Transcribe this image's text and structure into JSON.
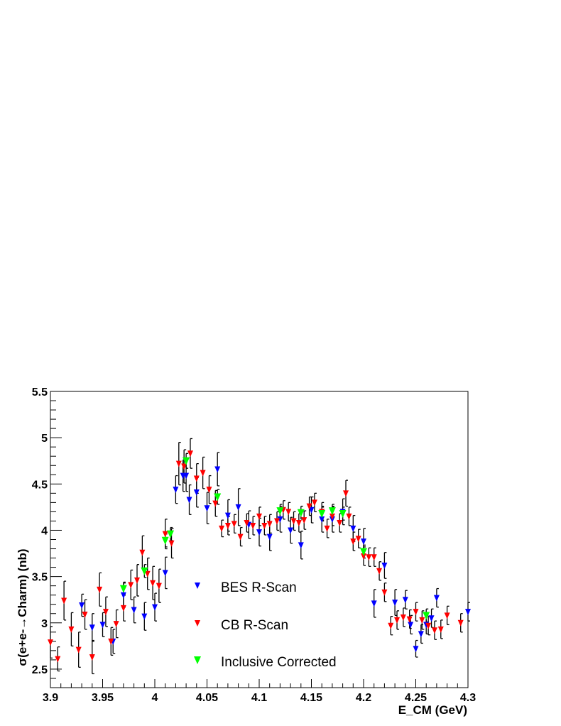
{
  "chart_data": {
    "type": "scatter",
    "title": "",
    "xlabel": "E_CM (GeV)",
    "ylabel": "σ(e+e-→Charm) (nb)",
    "xlim": [
      3.9,
      4.3
    ],
    "ylim": [
      2.3,
      5.5
    ],
    "x_ticks": [
      "3.9",
      "3.95",
      "4",
      "4.05",
      "4.1",
      "4.15",
      "4.2",
      "4.25",
      "4.3"
    ],
    "y_ticks": [
      "2.5",
      "3",
      "3.5",
      "4",
      "4.5",
      "5",
      "5.5"
    ],
    "grid": false,
    "legend_position": "center-left",
    "marker": "triangle-down",
    "error_bars": true,
    "series": [
      {
        "name": "BES R-Scan",
        "color": "#0000ff",
        "points": [
          [
            3.93,
            3.19,
            0.12
          ],
          [
            3.94,
            2.95,
            0.15
          ],
          [
            3.95,
            2.98,
            0.13
          ],
          [
            3.96,
            2.8,
            0.13
          ],
          [
            3.97,
            3.3,
            0.13
          ],
          [
            3.98,
            3.14,
            0.14
          ],
          [
            3.99,
            3.07,
            0.15
          ],
          [
            4.0,
            3.17,
            0.15
          ],
          [
            4.01,
            3.54,
            0.17
          ],
          [
            4.02,
            4.44,
            0.15
          ],
          [
            4.027,
            4.59,
            0.17
          ],
          [
            4.03,
            4.59,
            0.17
          ],
          [
            4.033,
            4.33,
            0.16
          ],
          [
            4.04,
            4.41,
            0.16
          ],
          [
            4.05,
            4.24,
            0.17
          ],
          [
            4.06,
            4.66,
            0.18
          ],
          [
            4.07,
            4.16,
            0.17
          ],
          [
            4.08,
            4.25,
            0.2
          ],
          [
            4.09,
            4.06,
            0.15
          ],
          [
            4.1,
            3.98,
            0.15
          ],
          [
            4.11,
            3.93,
            0.15
          ],
          [
            4.12,
            4.12,
            0.14
          ],
          [
            4.13,
            4.0,
            0.14
          ],
          [
            4.14,
            3.84,
            0.15
          ],
          [
            4.15,
            4.22,
            0.14
          ],
          [
            4.16,
            4.12,
            0.14
          ],
          [
            4.17,
            4.12,
            0.14
          ],
          [
            4.18,
            4.2,
            0.14
          ],
          [
            4.19,
            4.02,
            0.14
          ],
          [
            4.2,
            3.88,
            0.14
          ],
          [
            4.21,
            3.21,
            0.15
          ],
          [
            4.22,
            3.62,
            0.14
          ],
          [
            4.23,
            3.22,
            0.14
          ],
          [
            4.24,
            3.25,
            0.1
          ],
          [
            4.245,
            2.98,
            0.1
          ],
          [
            4.25,
            2.72,
            0.09
          ],
          [
            4.255,
            2.88,
            0.1
          ],
          [
            4.26,
            2.98,
            0.1
          ],
          [
            4.265,
            3.05,
            0.1
          ],
          [
            4.27,
            3.27,
            0.1
          ],
          [
            4.3,
            3.12,
            0.1
          ]
        ]
      },
      {
        "name": "CB R-Scan",
        "color": "#ff0000",
        "points": [
          [
            3.9,
            2.79,
            0.17
          ],
          [
            3.907,
            2.61,
            0.13
          ],
          [
            3.913,
            3.24,
            0.21
          ],
          [
            3.92,
            2.93,
            0.18
          ],
          [
            3.927,
            2.71,
            0.19
          ],
          [
            3.933,
            3.09,
            0.16
          ],
          [
            3.94,
            2.63,
            0.18
          ],
          [
            3.947,
            3.36,
            0.18
          ],
          [
            3.953,
            3.12,
            0.16
          ],
          [
            3.958,
            2.8,
            0.15
          ],
          [
            3.963,
            2.99,
            0.15
          ],
          [
            3.97,
            3.16,
            0.14
          ],
          [
            3.977,
            3.41,
            0.16
          ],
          [
            3.983,
            3.46,
            0.17
          ],
          [
            3.988,
            3.76,
            0.18
          ],
          [
            3.993,
            3.53,
            0.17
          ],
          [
            3.998,
            3.43,
            0.18
          ],
          [
            4.004,
            3.4,
            0.18
          ],
          [
            4.01,
            3.96,
            0.16
          ],
          [
            4.016,
            3.86,
            0.16
          ],
          [
            4.023,
            4.72,
            0.23
          ],
          [
            4.028,
            4.69,
            0.18
          ],
          [
            4.034,
            4.83,
            0.16
          ],
          [
            4.04,
            4.56,
            0.16
          ],
          [
            4.046,
            4.62,
            0.17
          ],
          [
            4.052,
            4.44,
            0.15
          ],
          [
            4.058,
            4.29,
            0.14
          ],
          [
            4.064,
            4.02,
            0.09
          ],
          [
            4.07,
            4.05,
            0.1
          ],
          [
            4.076,
            4.07,
            0.1
          ],
          [
            4.082,
            3.93,
            0.1
          ],
          [
            4.088,
            4.08,
            0.1
          ],
          [
            4.094,
            4.05,
            0.1
          ],
          [
            4.1,
            4.15,
            0.1
          ],
          [
            4.105,
            4.05,
            0.1
          ],
          [
            4.11,
            4.07,
            0.1
          ],
          [
            4.117,
            4.1,
            0.1
          ],
          [
            4.123,
            4.22,
            0.1
          ],
          [
            4.128,
            4.2,
            0.1
          ],
          [
            4.133,
            4.1,
            0.1
          ],
          [
            4.138,
            4.08,
            0.1
          ],
          [
            4.143,
            4.11,
            0.1
          ],
          [
            4.148,
            4.26,
            0.1
          ],
          [
            4.153,
            4.3,
            0.1
          ],
          [
            4.16,
            4.2,
            0.1
          ],
          [
            4.165,
            4.02,
            0.1
          ],
          [
            4.17,
            4.15,
            0.1
          ],
          [
            4.177,
            4.08,
            0.1
          ],
          [
            4.183,
            4.4,
            0.14
          ],
          [
            4.186,
            4.15,
            0.1
          ],
          [
            4.19,
            3.88,
            0.1
          ],
          [
            4.195,
            3.91,
            0.1
          ],
          [
            4.2,
            3.72,
            0.1
          ],
          [
            4.205,
            3.71,
            0.1
          ],
          [
            4.21,
            3.71,
            0.1
          ],
          [
            4.215,
            3.56,
            0.1
          ],
          [
            4.22,
            3.33,
            0.1
          ],
          [
            4.226,
            2.97,
            0.1
          ],
          [
            4.232,
            3.03,
            0.1
          ],
          [
            4.238,
            3.06,
            0.1
          ],
          [
            4.244,
            3.04,
            0.1
          ],
          [
            4.25,
            3.12,
            0.1
          ],
          [
            4.256,
            3.03,
            0.1
          ],
          [
            4.262,
            2.97,
            0.1
          ],
          [
            4.268,
            2.92,
            0.1
          ],
          [
            4.274,
            2.93,
            0.1
          ],
          [
            4.28,
            3.08,
            0.1
          ],
          [
            4.293,
            3.0,
            0.1
          ]
        ]
      },
      {
        "name": "Inclusive Corrected",
        "color": "#00ff00",
        "points": [
          [
            3.97,
            3.37,
            0.07
          ],
          [
            3.99,
            3.56,
            0.07
          ],
          [
            4.01,
            3.89,
            0.07
          ],
          [
            4.015,
            3.96,
            0.07
          ],
          [
            4.03,
            4.75,
            0.08
          ],
          [
            4.06,
            4.36,
            0.08
          ],
          [
            4.12,
            4.21,
            0.07
          ],
          [
            4.14,
            4.19,
            0.07
          ],
          [
            4.16,
            4.18,
            0.07
          ],
          [
            4.17,
            4.21,
            0.07
          ],
          [
            4.18,
            4.18,
            0.07
          ],
          [
            4.2,
            3.77,
            0.07
          ],
          [
            4.26,
            3.08,
            0.07
          ]
        ]
      }
    ]
  }
}
